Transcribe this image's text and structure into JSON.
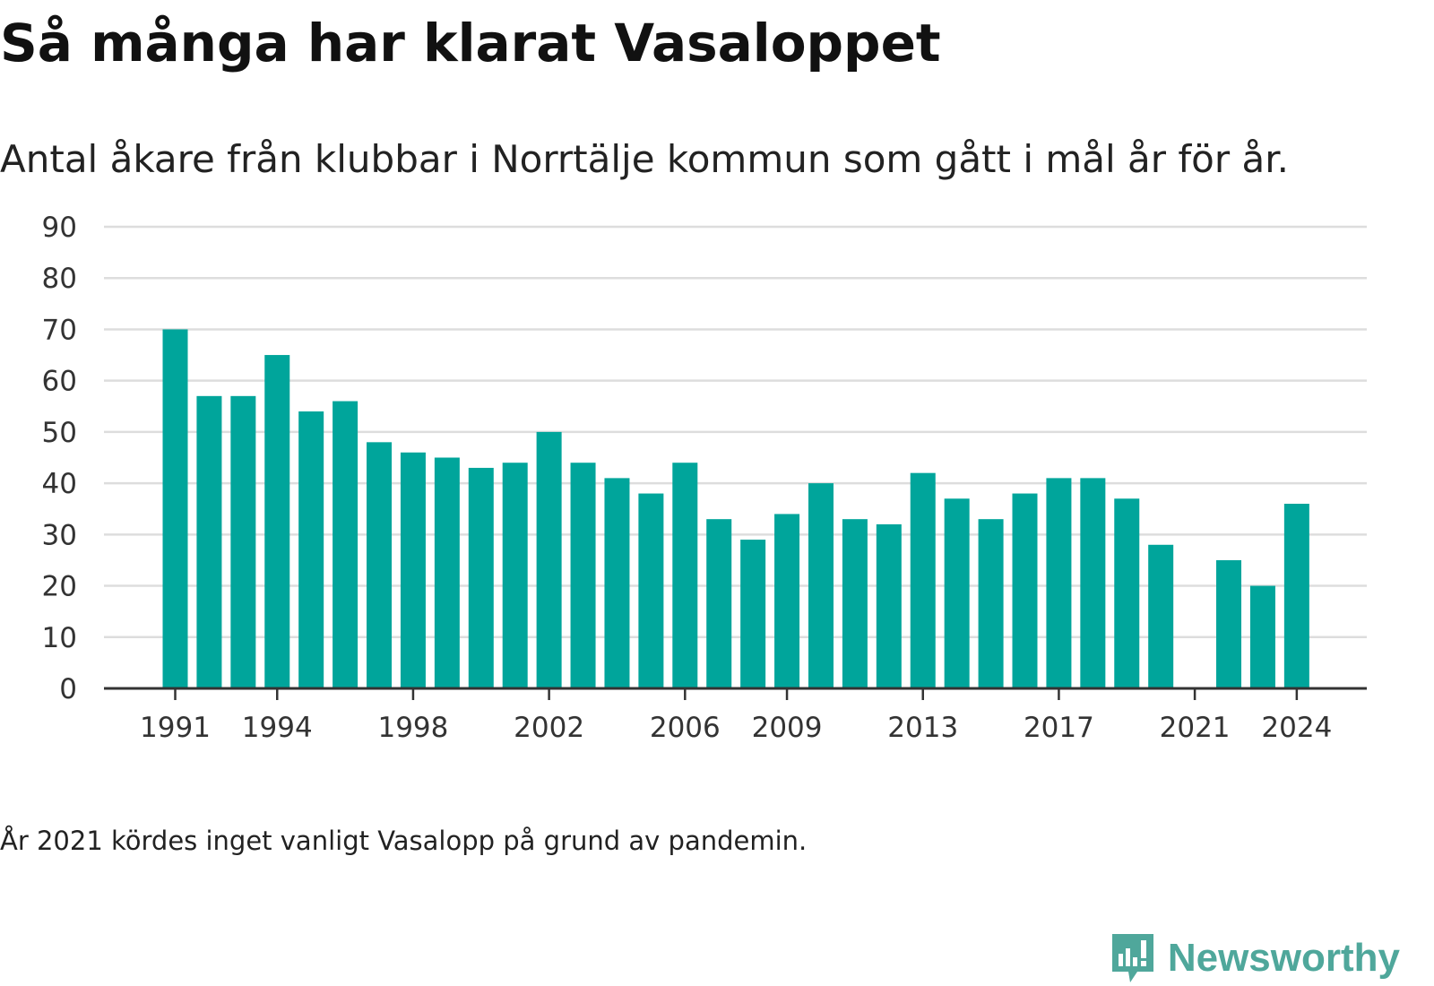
{
  "header": {
    "title": "Så många har klarat Vasaloppet",
    "subtitle": "Antal åkare från klubbar i Norrtälje kommun som gått i mål år för år."
  },
  "footer": {
    "note": "År 2021 kördes inget vanligt Vasalopp på grund av pandemin.",
    "brand": "Newsworthy"
  },
  "colors": {
    "bar": "#00a59b",
    "grid": "#dddddd",
    "axis": "#333333",
    "brand": "#4fa79b"
  },
  "icons": {
    "brand": "newsworthy-logo-icon"
  },
  "chart_data": {
    "type": "bar",
    "categories": [
      1991,
      1992,
      1993,
      1994,
      1995,
      1996,
      1997,
      1998,
      1999,
      2000,
      2001,
      2002,
      2003,
      2004,
      2005,
      2006,
      2007,
      2008,
      2009,
      2010,
      2011,
      2012,
      2013,
      2014,
      2015,
      2016,
      2017,
      2018,
      2019,
      2020,
      2021,
      2022,
      2023,
      2024
    ],
    "values": [
      70,
      57,
      57,
      65,
      54,
      56,
      48,
      46,
      45,
      43,
      44,
      50,
      44,
      41,
      38,
      44,
      33,
      29,
      34,
      40,
      33,
      32,
      42,
      37,
      33,
      38,
      41,
      41,
      37,
      28,
      null,
      25,
      20,
      36
    ],
    "x_tick_labels": [
      "1991",
      "1994",
      "1998",
      "2002",
      "2006",
      "2009",
      "2013",
      "2017",
      "2021",
      "2024"
    ],
    "y_ticks": [
      0,
      10,
      20,
      30,
      40,
      50,
      60,
      70,
      80,
      90
    ],
    "ylim": [
      0,
      90
    ],
    "grid": true,
    "legend": "none",
    "xlabel": "",
    "ylabel": ""
  }
}
